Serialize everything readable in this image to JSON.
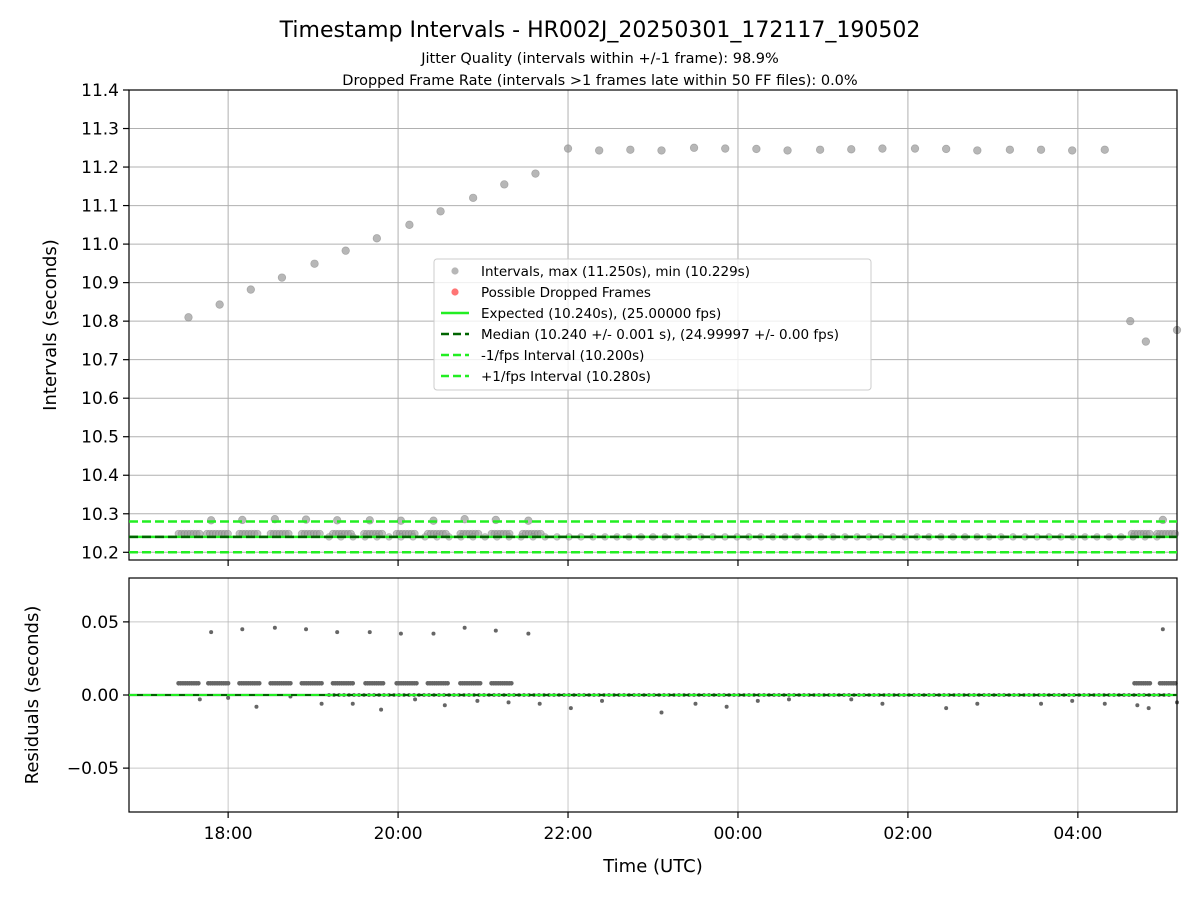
{
  "title": "Timestamp Intervals - HR002J_20250301_172117_190502",
  "subtitle_line1": "Jitter Quality (intervals within +/-1 frame): 98.9%",
  "subtitle_line2": "Dropped Frame Rate (intervals >1 frames late within 50 FF files): 0.0%",
  "colors": {
    "intervals": "#999999",
    "dropped": "#ff3b3b",
    "expected": "#22ee22",
    "median": "#006400",
    "fps_bound": "#22ee22",
    "residual_points": "#666666",
    "grid": "#b0b0b0"
  },
  "chart_data": [
    {
      "type": "scatter",
      "ylabel": "Intervals (seconds)",
      "xlim": [
        "16:50",
        "05:10"
      ],
      "ylim": [
        10.18,
        11.4
      ],
      "y_ticks": [
        "10.2",
        "10.3",
        "10.4",
        "10.5",
        "10.6",
        "10.7",
        "10.8",
        "10.9",
        "11.0",
        "11.1",
        "11.2",
        "11.3",
        "11.4"
      ],
      "grid": true,
      "legend_placement": "center",
      "legend": [
        {
          "label": "Intervals, max (11.250s), min (10.229s)",
          "kind": "point",
          "color": "#999999"
        },
        {
          "label": "Possible Dropped Frames",
          "kind": "point",
          "color": "#ff3b3b"
        },
        {
          "label": "Expected (10.240s), (25.00000 fps)",
          "kind": "line",
          "color": "#22ee22"
        },
        {
          "label": "Median (10.240 +/- 0.001 s), (24.99997 +/- 0.00 fps)",
          "kind": "dash",
          "color": "#006400"
        },
        {
          "label": "-1/fps Interval (10.200s)",
          "kind": "dash",
          "color": "#22ee22"
        },
        {
          "label": "+1/fps Interval (10.280s)",
          "kind": "dash",
          "color": "#22ee22"
        }
      ],
      "reference_lines": {
        "expected": 10.24,
        "median": 10.24,
        "minus_fps": 10.2,
        "plus_fps": 10.28
      },
      "outlier_points": [
        {
          "x": "17:32",
          "y": 10.81
        },
        {
          "x": "17:54",
          "y": 10.843
        },
        {
          "x": "18:16",
          "y": 10.882
        },
        {
          "x": "18:38",
          "y": 10.913
        },
        {
          "x": "19:01",
          "y": 10.949
        },
        {
          "x": "19:23",
          "y": 10.983
        },
        {
          "x": "19:45",
          "y": 11.015
        },
        {
          "x": "20:08",
          "y": 11.05
        },
        {
          "x": "20:30",
          "y": 11.085
        },
        {
          "x": "20:53",
          "y": 11.12
        },
        {
          "x": "21:15",
          "y": 11.155
        },
        {
          "x": "21:37",
          "y": 11.183
        },
        {
          "x": "22:00",
          "y": 11.248
        },
        {
          "x": "22:22",
          "y": 11.243
        },
        {
          "x": "22:44",
          "y": 11.245
        },
        {
          "x": "23:06",
          "y": 11.243
        },
        {
          "x": "23:29",
          "y": 11.25
        },
        {
          "x": "23:51",
          "y": 11.248
        },
        {
          "x": "00:13",
          "y": 11.247
        },
        {
          "x": "00:35",
          "y": 11.243
        },
        {
          "x": "00:58",
          "y": 11.245
        },
        {
          "x": "01:20",
          "y": 11.246
        },
        {
          "x": "01:42",
          "y": 11.248
        },
        {
          "x": "02:05",
          "y": 11.248
        },
        {
          "x": "02:27",
          "y": 11.247
        },
        {
          "x": "02:49",
          "y": 11.243
        },
        {
          "x": "03:12",
          "y": 11.245
        },
        {
          "x": "03:34",
          "y": 11.245
        },
        {
          "x": "03:56",
          "y": 11.243
        },
        {
          "x": "04:19",
          "y": 11.245
        },
        {
          "x": "04:37",
          "y": 10.8
        },
        {
          "x": "04:48",
          "y": 10.747
        },
        {
          "x": "05:10",
          "y": 10.777
        }
      ],
      "peak_points": [
        {
          "x": "17:48",
          "y": 10.283
        },
        {
          "x": "18:10",
          "y": 10.284
        },
        {
          "x": "18:33",
          "y": 10.286
        },
        {
          "x": "18:55",
          "y": 10.285
        },
        {
          "x": "19:17",
          "y": 10.283
        },
        {
          "x": "19:40",
          "y": 10.283
        },
        {
          "x": "20:02",
          "y": 10.282
        },
        {
          "x": "20:25",
          "y": 10.282
        },
        {
          "x": "20:47",
          "y": 10.286
        },
        {
          "x": "21:09",
          "y": 10.284
        },
        {
          "x": "21:32",
          "y": 10.282
        },
        {
          "x": "05:00",
          "y": 10.284
        }
      ],
      "dense_band": [
        {
          "x_start": "17:25",
          "x_end": "17:40",
          "y": 10.248
        },
        {
          "x_start": "17:45",
          "x_end": "18:00",
          "y": 10.248
        },
        {
          "x_start": "18:08",
          "x_end": "18:22",
          "y": 10.248
        },
        {
          "x_start": "18:30",
          "x_end": "18:44",
          "y": 10.248
        },
        {
          "x_start": "18:52",
          "x_end": "19:06",
          "y": 10.248
        },
        {
          "x_start": "19:14",
          "x_end": "19:28",
          "y": 10.248
        },
        {
          "x_start": "19:36",
          "x_end": "19:50",
          "y": 10.248
        },
        {
          "x_start": "19:59",
          "x_end": "20:13",
          "y": 10.248
        },
        {
          "x_start": "20:21",
          "x_end": "20:35",
          "y": 10.248
        },
        {
          "x_start": "20:44",
          "x_end": "20:58",
          "y": 10.248
        },
        {
          "x_start": "21:06",
          "x_end": "21:20",
          "y": 10.248
        },
        {
          "x_start": "21:28",
          "x_end": "21:42",
          "y": 10.248
        },
        {
          "x_start": "04:38",
          "x_end": "04:52",
          "y": 10.248
        },
        {
          "x_start": "04:56",
          "x_end": "05:10",
          "y": 10.248
        }
      ]
    },
    {
      "type": "scatter",
      "xlabel": "Time (UTC)",
      "ylabel": "Residuals (seconds)",
      "xlim": [
        "16:50",
        "05:10"
      ],
      "ylim": [
        -0.08,
        0.08
      ],
      "x_ticks": [
        "18:00",
        "20:00",
        "22:00",
        "00:00",
        "02:00",
        "04:00"
      ],
      "y_ticks": [
        "0.05",
        "0.00",
        "−0.05"
      ],
      "grid": true,
      "high_points": [
        {
          "x": "17:48",
          "y": 0.043
        },
        {
          "x": "18:10",
          "y": 0.045
        },
        {
          "x": "18:33",
          "y": 0.046
        },
        {
          "x": "18:55",
          "y": 0.045
        },
        {
          "x": "19:17",
          "y": 0.043
        },
        {
          "x": "19:40",
          "y": 0.043
        },
        {
          "x": "20:02",
          "y": 0.042
        },
        {
          "x": "20:25",
          "y": 0.042
        },
        {
          "x": "20:47",
          "y": 0.046
        },
        {
          "x": "21:09",
          "y": 0.044
        },
        {
          "x": "21:32",
          "y": 0.042
        },
        {
          "x": "05:00",
          "y": 0.045
        }
      ],
      "low_points": [
        {
          "x": "17:40",
          "y": -0.003
        },
        {
          "x": "18:00",
          "y": -0.002
        },
        {
          "x": "18:20",
          "y": -0.008
        },
        {
          "x": "18:44",
          "y": -0.001
        },
        {
          "x": "19:06",
          "y": -0.006
        },
        {
          "x": "19:28",
          "y": -0.006
        },
        {
          "x": "19:48",
          "y": -0.01
        },
        {
          "x": "20:12",
          "y": -0.003
        },
        {
          "x": "20:33",
          "y": -0.007
        },
        {
          "x": "20:56",
          "y": -0.004
        },
        {
          "x": "21:18",
          "y": -0.005
        },
        {
          "x": "21:40",
          "y": -0.006
        },
        {
          "x": "22:02",
          "y": -0.009
        },
        {
          "x": "22:24",
          "y": -0.004
        },
        {
          "x": "23:06",
          "y": -0.012
        },
        {
          "x": "23:30",
          "y": -0.006
        },
        {
          "x": "23:52",
          "y": -0.008
        },
        {
          "x": "00:14",
          "y": -0.004
        },
        {
          "x": "00:36",
          "y": -0.003
        },
        {
          "x": "01:20",
          "y": -0.003
        },
        {
          "x": "01:42",
          "y": -0.006
        },
        {
          "x": "02:27",
          "y": -0.009
        },
        {
          "x": "02:49",
          "y": -0.006
        },
        {
          "x": "03:34",
          "y": -0.006
        },
        {
          "x": "03:56",
          "y": -0.004
        },
        {
          "x": "04:19",
          "y": -0.006
        },
        {
          "x": "04:42",
          "y": -0.007
        },
        {
          "x": "04:50",
          "y": -0.009
        },
        {
          "x": "05:10",
          "y": -0.005
        }
      ],
      "upper_band": [
        {
          "x_start": "17:25",
          "x_end": "17:40",
          "y": 0.008
        },
        {
          "x_start": "17:46",
          "x_end": "18:00",
          "y": 0.008
        },
        {
          "x_start": "18:08",
          "x_end": "18:22",
          "y": 0.008
        },
        {
          "x_start": "18:30",
          "x_end": "18:44",
          "y": 0.008
        },
        {
          "x_start": "18:52",
          "x_end": "19:06",
          "y": 0.008
        },
        {
          "x_start": "19:14",
          "x_end": "19:28",
          "y": 0.008
        },
        {
          "x_start": "19:37",
          "x_end": "19:50",
          "y": 0.008
        },
        {
          "x_start": "19:59",
          "x_end": "20:13",
          "y": 0.008
        },
        {
          "x_start": "20:21",
          "x_end": "20:35",
          "y": 0.008
        },
        {
          "x_start": "20:44",
          "x_end": "20:58",
          "y": 0.008
        },
        {
          "x_start": "21:06",
          "x_end": "21:20",
          "y": 0.008
        },
        {
          "x_start": "04:40",
          "x_end": "04:52",
          "y": 0.008
        },
        {
          "x_start": "04:58",
          "x_end": "05:10",
          "y": 0.008
        }
      ],
      "zero_line": 0.0
    }
  ]
}
